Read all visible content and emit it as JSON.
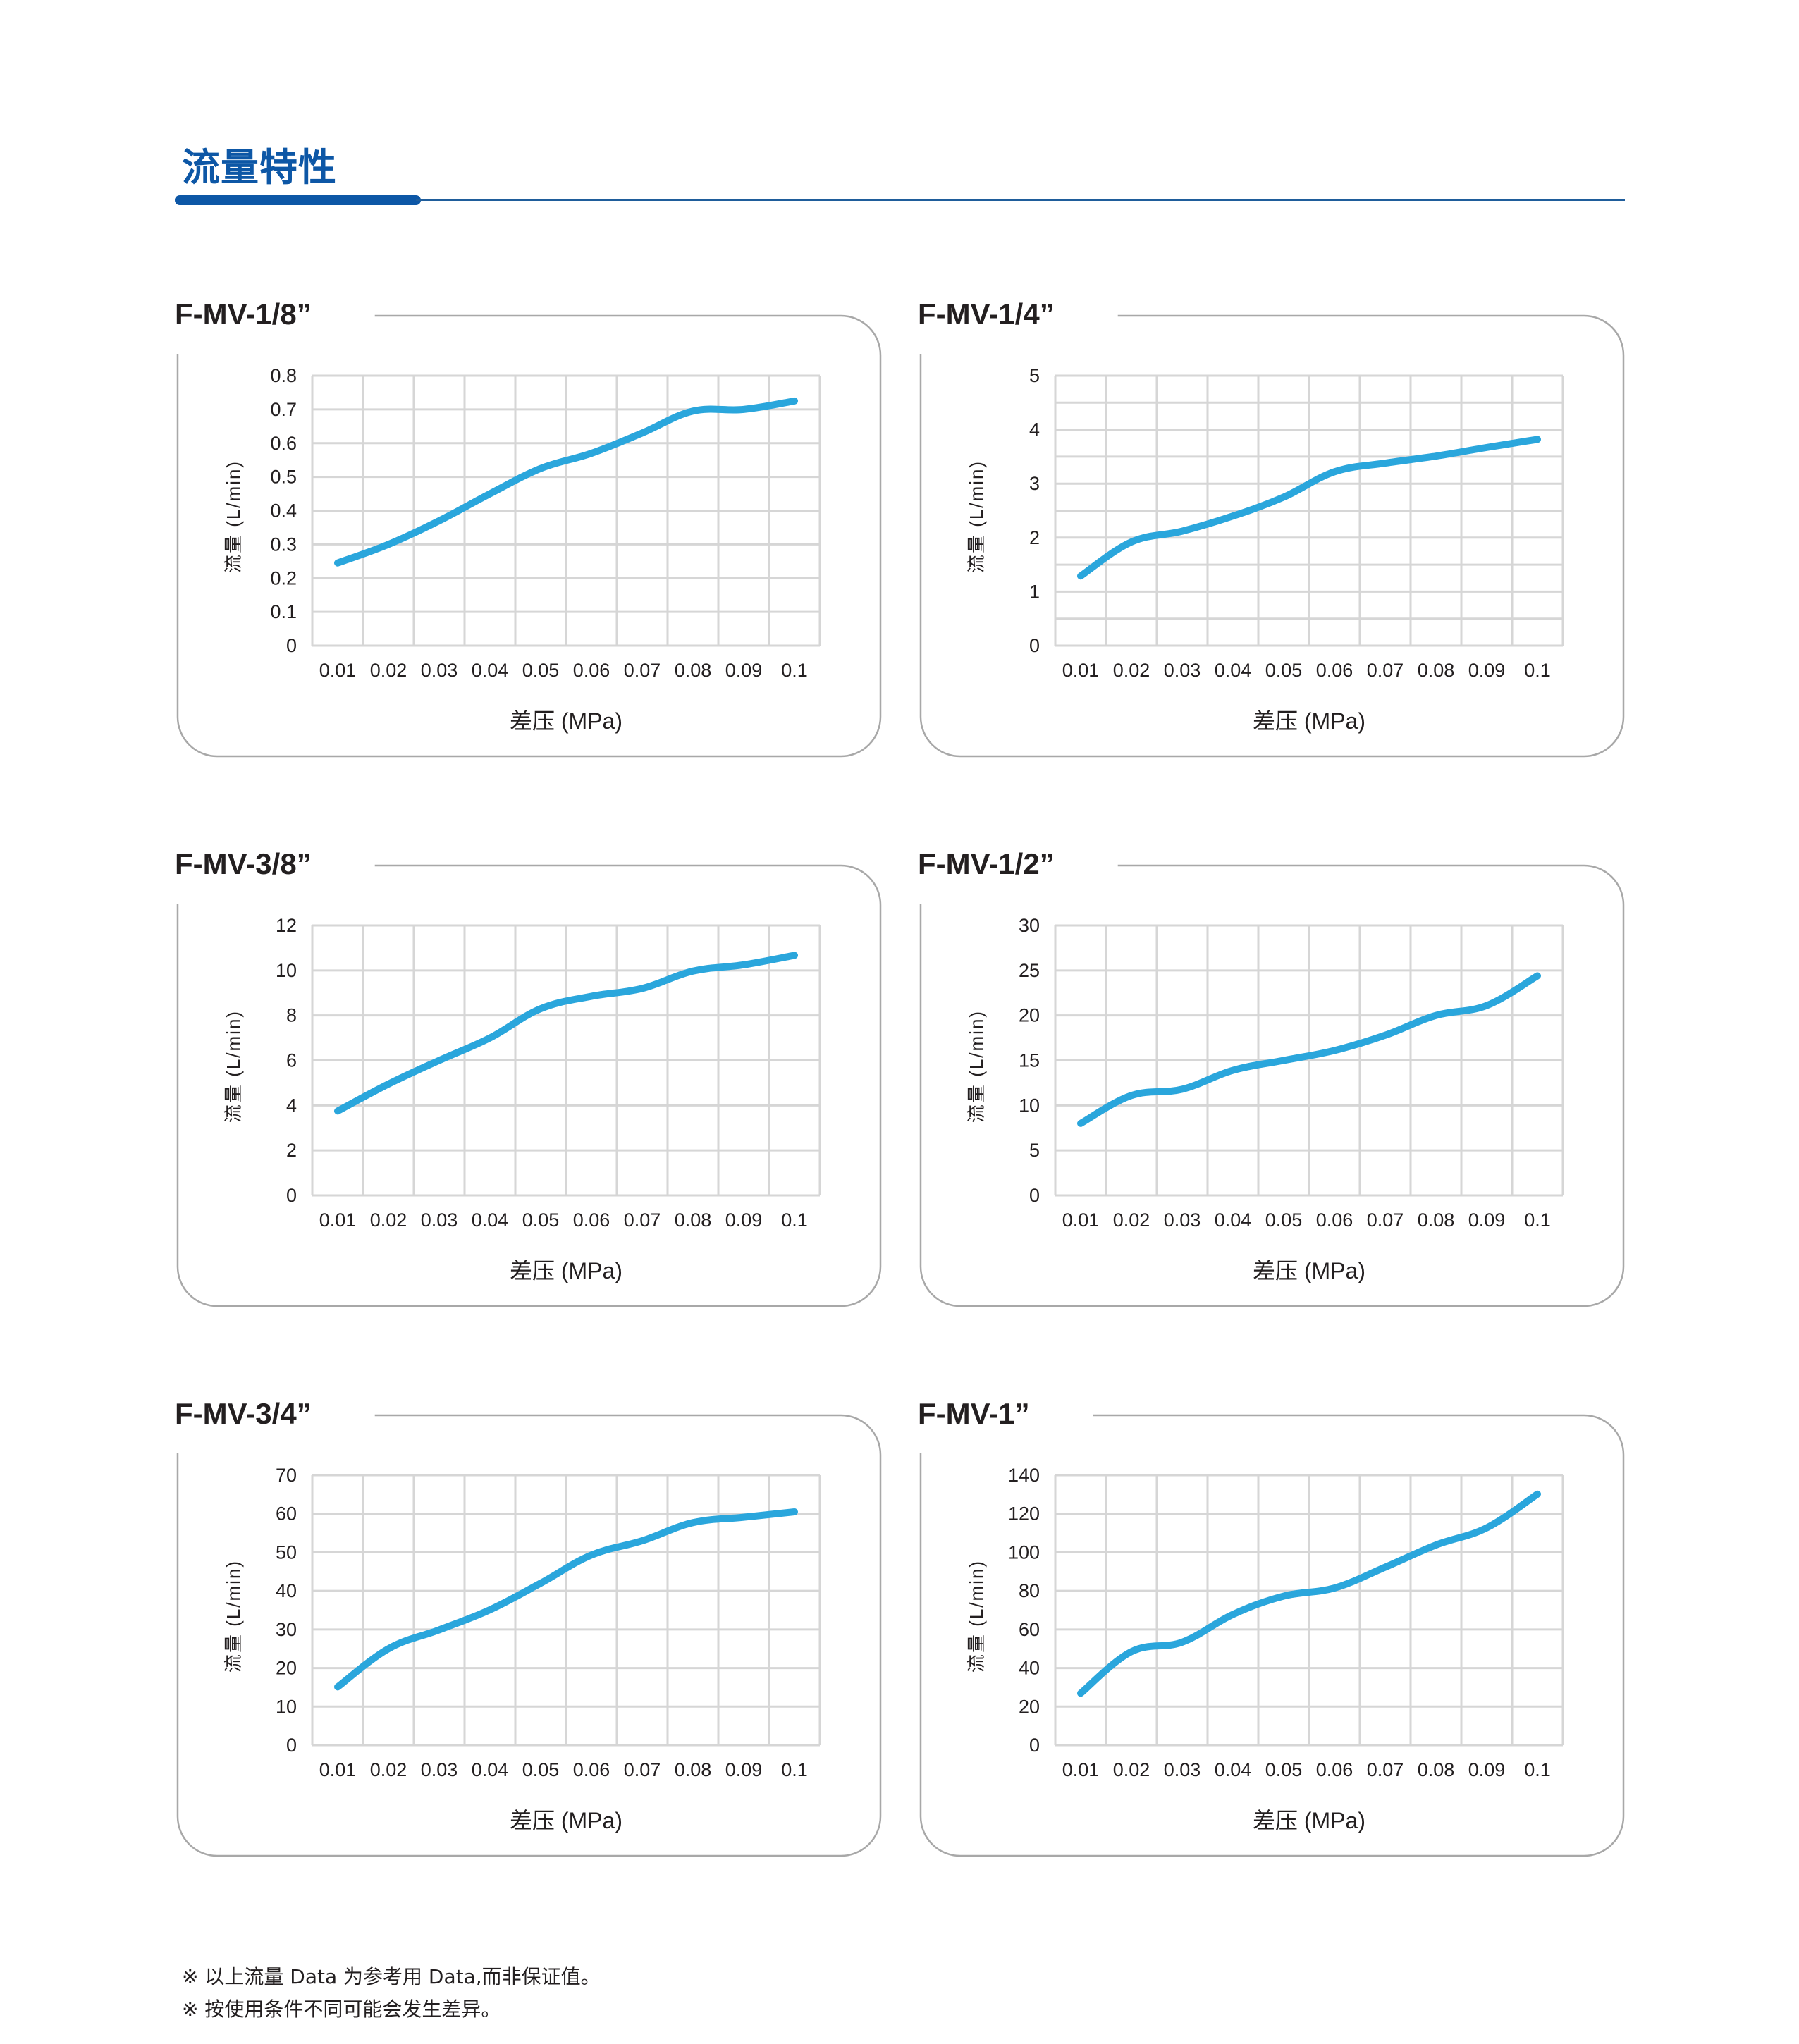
{
  "page": {
    "title": "流量特性",
    "footnotes": [
      "※ 以上流量 Data 为参考用 Data,而非保证值。",
      "※ 按使用条件不同可能会发生差异。"
    ]
  },
  "colors": {
    "brand": "#0d57a6",
    "series": "#2aa6dc",
    "grid": "#d6d6d6",
    "card_border": "#a8a8a8"
  },
  "chart_data": [
    {
      "type": "line",
      "title": "F-MV-1/8”",
      "xlabel": "差压 (MPa)",
      "ylabel": "流量 (L/min)",
      "categories": [
        "0.01",
        "0.02",
        "0.03",
        "0.04",
        "0.05",
        "0.06",
        "0.07",
        "0.08",
        "0.09",
        "0.1"
      ],
      "yticks": [
        "0",
        "0.1",
        "0.2",
        "0.3",
        "0.4",
        "0.5",
        "0.6",
        "0.7",
        "0.8"
      ],
      "ylim": [
        0,
        0.8
      ],
      "grid_step": 0.1,
      "grid": true,
      "legend": "none",
      "series": [
        {
          "name": "F-MV-1/8”",
          "values": [
            0.245,
            0.3,
            0.37,
            0.45,
            0.525,
            0.57,
            0.63,
            0.695,
            0.7,
            0.725
          ]
        }
      ]
    },
    {
      "type": "line",
      "title": "F-MV-1/4”",
      "xlabel": "差压 (MPa)",
      "ylabel": "流量 (L/min)",
      "categories": [
        "0.01",
        "0.02",
        "0.03",
        "0.04",
        "0.05",
        "0.06",
        "0.07",
        "0.08",
        "0.09",
        "0.1"
      ],
      "yticks": [
        "0",
        "1",
        "2",
        "3",
        "4",
        "5"
      ],
      "ylim": [
        0,
        5
      ],
      "grid_step": 0.5,
      "grid": true,
      "legend": "none",
      "series": [
        {
          "name": "F-MV-1/4”",
          "values": [
            1.29,
            1.92,
            2.12,
            2.4,
            2.75,
            3.22,
            3.38,
            3.51,
            3.67,
            3.82
          ]
        }
      ]
    },
    {
      "type": "line",
      "title": "F-MV-3/8”",
      "xlabel": "差压 (MPa)",
      "ylabel": "流量 (L/min)",
      "categories": [
        "0.01",
        "0.02",
        "0.03",
        "0.04",
        "0.05",
        "0.06",
        "0.07",
        "0.08",
        "0.09",
        "0.1"
      ],
      "yticks": [
        "0",
        "2",
        "4",
        "6",
        "8",
        "10",
        "12"
      ],
      "ylim": [
        0,
        12
      ],
      "grid_step": 2,
      "grid": true,
      "legend": "none",
      "series": [
        {
          "name": "F-MV-3/8”",
          "values": [
            3.75,
            4.95,
            6.0,
            7.0,
            8.3,
            8.85,
            9.2,
            9.97,
            10.25,
            10.67
          ]
        }
      ]
    },
    {
      "type": "line",
      "title": "F-MV-1/2”",
      "xlabel": "差压 (MPa)",
      "ylabel": "流量 (L/min)",
      "categories": [
        "0.01",
        "0.02",
        "0.03",
        "0.04",
        "0.05",
        "0.06",
        "0.07",
        "0.08",
        "0.09",
        "0.1"
      ],
      "yticks": [
        "0",
        "5",
        "10",
        "15",
        "20",
        "25",
        "30"
      ],
      "ylim": [
        0,
        30
      ],
      "grid_step": 5,
      "grid": true,
      "legend": "none",
      "series": [
        {
          "name": "F-MV-1/2”",
          "values": [
            8.0,
            11.1,
            11.8,
            13.9,
            15.0,
            16.1,
            17.8,
            20.0,
            21.1,
            24.4
          ]
        }
      ]
    },
    {
      "type": "line",
      "title": "F-MV-3/4”",
      "xlabel": "差压 (MPa)",
      "ylabel": "流量 (L/min)",
      "categories": [
        "0.01",
        "0.02",
        "0.03",
        "0.04",
        "0.05",
        "0.06",
        "0.07",
        "0.08",
        "0.09",
        "0.1"
      ],
      "yticks": [
        "0",
        "10",
        "20",
        "30",
        "40",
        "50",
        "60",
        "70"
      ],
      "ylim": [
        0,
        70
      ],
      "grid_step": 10,
      "grid": true,
      "legend": "none",
      "series": [
        {
          "name": "F-MV-3/4”",
          "values": [
            15.1,
            25.0,
            29.9,
            35.1,
            42.0,
            49.3,
            53.0,
            57.7,
            59.1,
            60.5
          ]
        }
      ]
    },
    {
      "type": "line",
      "title": "F-MV-1”",
      "xlabel": "差压 (MPa)",
      "ylabel": "流量 (L/min)",
      "categories": [
        "0.01",
        "0.02",
        "0.03",
        "0.04",
        "0.05",
        "0.06",
        "0.07",
        "0.08",
        "0.09",
        "0.1"
      ],
      "yticks": [
        "0",
        "20",
        "40",
        "60",
        "80",
        "100",
        "120",
        "140"
      ],
      "ylim": [
        0,
        140
      ],
      "grid_step": 20,
      "grid": true,
      "legend": "none",
      "series": [
        {
          "name": "F-MV-1”",
          "values": [
            26.9,
            48.5,
            53.4,
            67.8,
            77.3,
            81.5,
            92.3,
            103.8,
            112.7,
            130.2
          ]
        }
      ]
    }
  ]
}
